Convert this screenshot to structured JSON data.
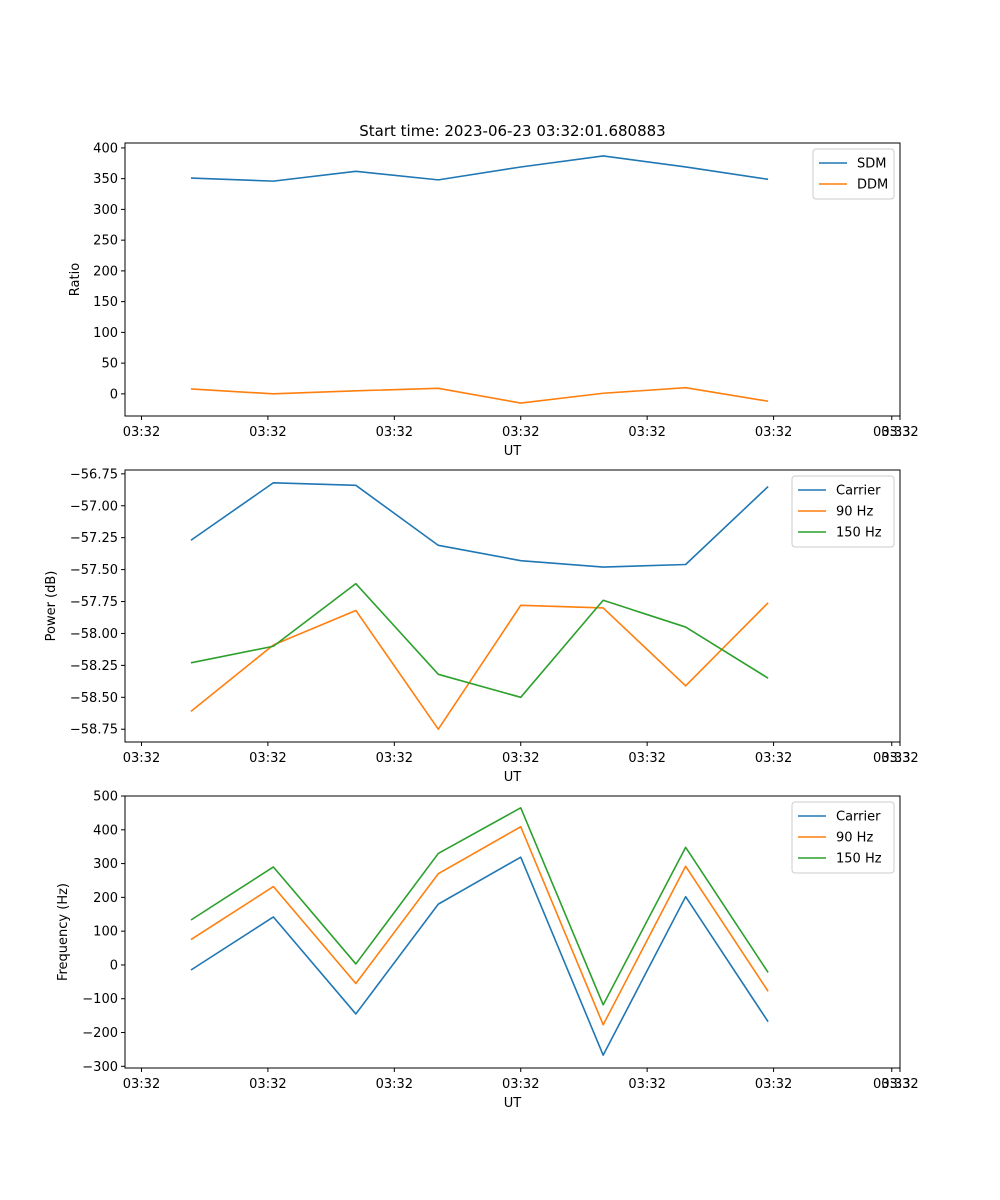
{
  "figure": {
    "title": "Start time: 2023-06-23 03:32:01.680883"
  },
  "chart_data": [
    {
      "type": "line",
      "title": "Start time: 2023-06-23 03:32:01.680883",
      "xlabel": "UT",
      "ylabel": "Ratio",
      "x": [
        1,
        2,
        3,
        4,
        5,
        6,
        7,
        8
      ],
      "x_tick_labels": [
        "03:32",
        "03:32",
        "03:32",
        "03:32",
        "03:32",
        "03:32",
        "03:32"
      ],
      "x_last_tick_label": "03:33",
      "xlim": [
        0.2,
        9.6
      ],
      "ylim": [
        -36,
        408
      ],
      "yticks": [
        0,
        50,
        100,
        150,
        200,
        250,
        300,
        350,
        400
      ],
      "legend_placement": "upper-right",
      "grid": false,
      "series": [
        {
          "name": "SDM",
          "color": "#1f77b4",
          "values": [
            351,
            346,
            362,
            348,
            369,
            387,
            369,
            349
          ]
        },
        {
          "name": "DDM",
          "color": "#ff7f0e",
          "values": [
            8,
            0,
            5,
            9,
            -15,
            1,
            10,
            -12
          ]
        }
      ]
    },
    {
      "type": "line",
      "xlabel": "UT",
      "ylabel": "Power (dB)",
      "x": [
        1,
        2,
        3,
        4,
        5,
        6,
        7,
        8
      ],
      "x_tick_labels": [
        "03:32",
        "03:32",
        "03:32",
        "03:32",
        "03:32",
        "03:32",
        "03:32"
      ],
      "x_last_tick_label": "03:33",
      "xlim": [
        0.2,
        9.6
      ],
      "ylim": [
        -58.85,
        -56.72
      ],
      "yticks": [
        -58.75,
        -58.5,
        -58.25,
        -58.0,
        -57.75,
        -57.5,
        -57.25,
        -57.0,
        -56.75
      ],
      "ytick_labels": [
        "−58.75",
        "−58.50",
        "−58.25",
        "−58.00",
        "−57.75",
        "−57.50",
        "−57.25",
        "−57.00",
        "−56.75"
      ],
      "legend_placement": "upper-right",
      "grid": false,
      "series": [
        {
          "name": "Carrier",
          "color": "#1f77b4",
          "values": [
            -57.27,
            -56.82,
            -56.84,
            -57.31,
            -57.43,
            -57.48,
            -57.46,
            -56.85
          ]
        },
        {
          "name": "90 Hz",
          "color": "#ff7f0e",
          "values": [
            -58.61,
            -58.09,
            -57.82,
            -58.75,
            -57.78,
            -57.8,
            -58.41,
            -57.76
          ]
        },
        {
          "name": "150 Hz",
          "color": "#2ca02c",
          "values": [
            -58.23,
            -58.1,
            -57.61,
            -58.32,
            -58.5,
            -57.74,
            -57.95,
            -58.35
          ]
        }
      ]
    },
    {
      "type": "line",
      "xlabel": "UT",
      "ylabel": "Frequency (Hz)",
      "x": [
        1,
        2,
        3,
        4,
        5,
        6,
        7,
        8
      ],
      "x_tick_labels": [
        "03:32",
        "03:32",
        "03:32",
        "03:32",
        "03:32",
        "03:32",
        "03:32"
      ],
      "x_last_tick_label": "03:33",
      "xlim": [
        0.2,
        9.6
      ],
      "ylim": [
        -305,
        500
      ],
      "yticks": [
        -300,
        -200,
        -100,
        0,
        100,
        200,
        300,
        400,
        500
      ],
      "ytick_labels": [
        "−300",
        "−200",
        "−100",
        "0",
        "100",
        "200",
        "300",
        "400",
        "500"
      ],
      "legend_placement": "upper-right",
      "grid": false,
      "series": [
        {
          "name": "Carrier",
          "color": "#1f77b4",
          "values": [
            -15,
            142,
            -145,
            180,
            319,
            -267,
            202,
            -168
          ]
        },
        {
          "name": "90 Hz",
          "color": "#ff7f0e",
          "values": [
            75,
            232,
            -55,
            270,
            409,
            -177,
            292,
            -78
          ]
        },
        {
          "name": "150 Hz",
          "color": "#2ca02c",
          "values": [
            133,
            290,
            3,
            330,
            465,
            -118,
            348,
            -22
          ]
        }
      ]
    }
  ]
}
